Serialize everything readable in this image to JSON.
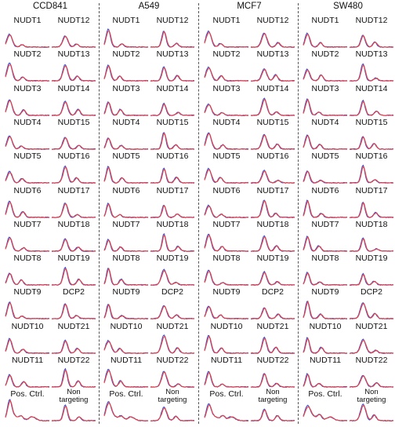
{
  "figure": {
    "panels": [
      {
        "title": "CCD841",
        "key": "ccd841"
      },
      {
        "title": "A549",
        "key": "a549"
      },
      {
        "title": "MCF7",
        "key": "mcf7"
      },
      {
        "title": "SW480",
        "key": "sw480"
      }
    ],
    "rows": [
      [
        "NUDT1",
        "NUDT12"
      ],
      [
        "NUDT2",
        "NUDT13"
      ],
      [
        "NUDT3",
        "NUDT14"
      ],
      [
        "NUDT4",
        "NUDT15"
      ],
      [
        "NUDT5",
        "NUDT16"
      ],
      [
        "NUDT6",
        "NUDT17"
      ],
      [
        "NUDT7",
        "NUDT18"
      ],
      [
        "NUDT8",
        "NUDT19"
      ],
      [
        "NUDT9",
        "DCP2"
      ],
      [
        "NUDT10",
        "NUDT21"
      ],
      [
        "NUDT11",
        "NUDT22"
      ],
      [
        "Pos. Ctrl.",
        "Non\ntargeting"
      ]
    ],
    "colors": {
      "trace_a": "#ee3b3b",
      "trace_b": "#3b4fd0",
      "divider": "#555555"
    }
  }
}
